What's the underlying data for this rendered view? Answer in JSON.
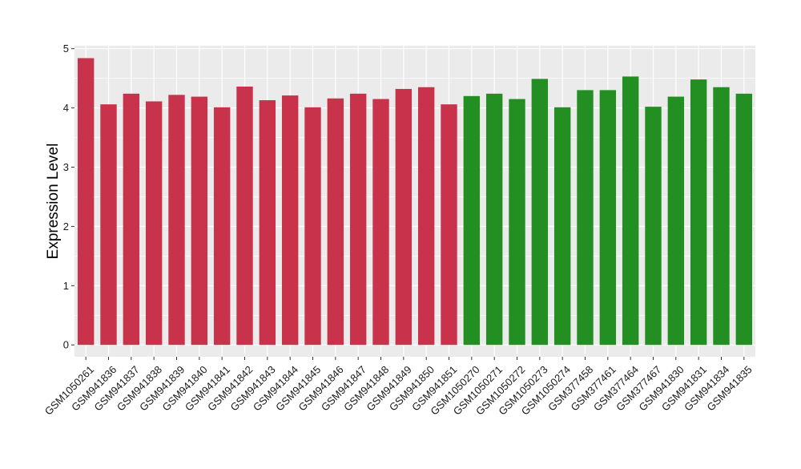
{
  "chart_data": {
    "type": "bar",
    "title": "",
    "xlabel": "",
    "ylabel": "Expression Level",
    "ylim": [
      -0.2,
      5.05
    ],
    "yticks": [
      0,
      1,
      2,
      3,
      4,
      5
    ],
    "grid": true,
    "legend": "none",
    "colors": {
      "group1": "#c8334b",
      "group2": "#238f23",
      "panel": "#ebebeb",
      "grid": "#ffffff"
    },
    "categories": [
      "GSM1050261",
      "GSM941836",
      "GSM941837",
      "GSM941838",
      "GSM941839",
      "GSM941840",
      "GSM941841",
      "GSM941842",
      "GSM941843",
      "GSM941844",
      "GSM941845",
      "GSM941846",
      "GSM941847",
      "GSM941848",
      "GSM941849",
      "GSM941850",
      "GSM941851",
      "GSM1050270",
      "GSM1050271",
      "GSM1050272",
      "GSM1050273",
      "GSM1050274",
      "GSM377458",
      "GSM377461",
      "GSM377464",
      "GSM377467",
      "GSM941830",
      "GSM941831",
      "GSM941834",
      "GSM941835"
    ],
    "values": [
      4.84,
      4.06,
      4.24,
      4.11,
      4.22,
      4.19,
      4.01,
      4.36,
      4.13,
      4.21,
      4.01,
      4.16,
      4.24,
      4.15,
      4.32,
      4.35,
      4.06,
      4.2,
      4.24,
      4.15,
      4.49,
      4.01,
      4.3,
      4.3,
      4.53,
      4.02,
      4.19,
      4.48,
      4.35,
      4.24
    ],
    "groups": [
      "group1",
      "group1",
      "group1",
      "group1",
      "group1",
      "group1",
      "group1",
      "group1",
      "group1",
      "group1",
      "group1",
      "group1",
      "group1",
      "group1",
      "group1",
      "group1",
      "group1",
      "group2",
      "group2",
      "group2",
      "group2",
      "group2",
      "group2",
      "group2",
      "group2",
      "group2",
      "group2",
      "group2",
      "group2",
      "group2"
    ]
  }
}
